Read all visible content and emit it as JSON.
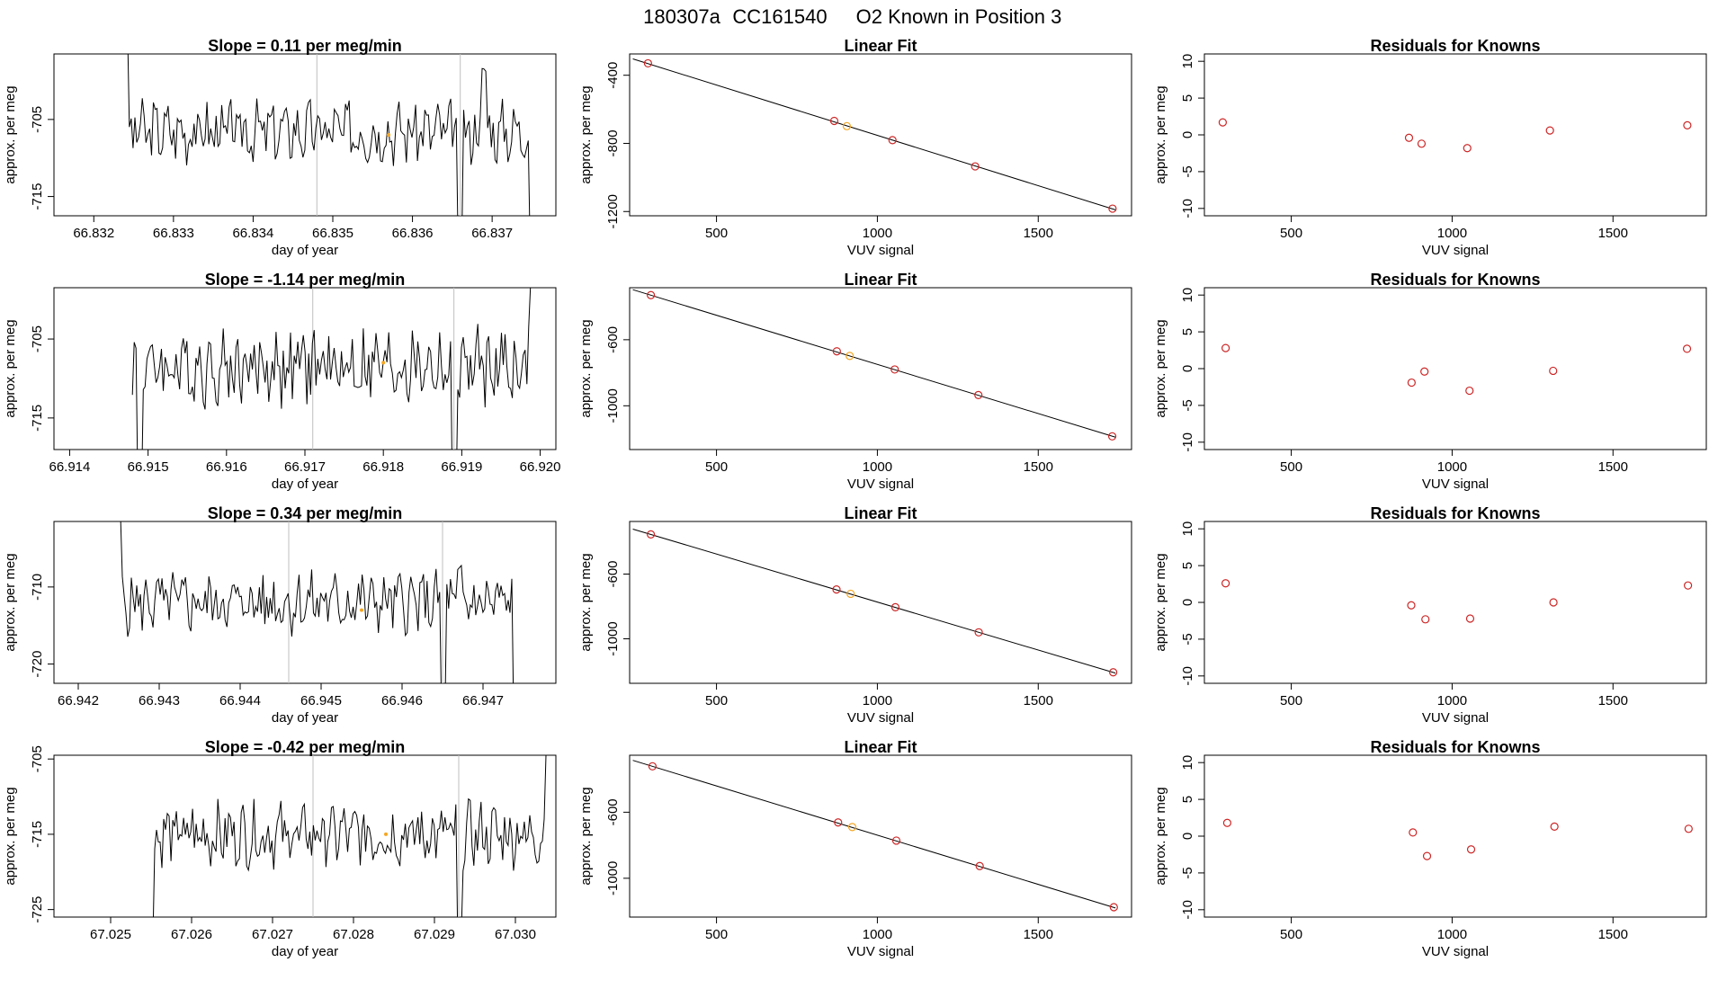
{
  "title": {
    "run_id": "180307a",
    "cylinder": "CC161540",
    "description": "O2 Known in Position  3"
  },
  "colors": {
    "line": "#000000",
    "point": "#cd2626",
    "highlight": "#f5a623",
    "vline": "#bfbfbf",
    "frame": "#000000"
  },
  "chart_data": [
    {
      "type": "line",
      "panel": "time-series",
      "row": 1,
      "title": "Slope =  0.11  per meg/min",
      "xlabel": "day of year",
      "ylabel": "approx. per meg",
      "xlim": [
        66.8315,
        66.8378
      ],
      "ylim": [
        -717.5,
        -696.5
      ],
      "xticks": [
        "66.832",
        "66.833",
        "66.834",
        "66.835",
        "66.836",
        "66.837"
      ],
      "xtick_values": [
        66.832,
        66.833,
        66.834,
        66.835,
        66.836,
        66.837
      ],
      "yticks": [
        "-705",
        "-715"
      ],
      "ytick_values": [
        -705,
        -715
      ],
      "series_start": 66.8324,
      "series_end": 66.8375,
      "series_base": -706.5,
      "series_amp": 3.3,
      "spikes": [
        {
          "x": 66.8324,
          "y": -694
        },
        {
          "x": 66.8366,
          "y": -722
        },
        {
          "x": 66.8369,
          "y": -698.5
        },
        {
          "x": 66.8375,
          "y": -722
        }
      ],
      "vlines": [
        66.8348,
        66.8366
      ],
      "highlight_point": {
        "x": 66.8357,
        "y": -707
      }
    },
    {
      "type": "line",
      "panel": "time-series",
      "row": 2,
      "title": "Slope =  -1.14  per meg/min",
      "xlabel": "day of year",
      "ylabel": "approx. per meg",
      "xlim": [
        66.9138,
        66.9202
      ],
      "ylim": [
        -719,
        -698.5
      ],
      "xticks": [
        "66.914",
        "66.915",
        "66.916",
        "66.917",
        "66.918",
        "66.919",
        "66.920"
      ],
      "xtick_values": [
        66.914,
        66.915,
        66.916,
        66.917,
        66.918,
        66.919,
        66.92
      ],
      "yticks": [
        "-705",
        "-715"
      ],
      "ytick_values": [
        -705,
        -715
      ],
      "series_start": 66.9148,
      "series_end": 66.9199,
      "series_base": -708.5,
      "series_amp": 4.0,
      "spikes": [
        {
          "x": 66.9149,
          "y": -725
        },
        {
          "x": 66.9189,
          "y": -725
        },
        {
          "x": 66.9199,
          "y": -698
        }
      ],
      "vlines": [
        66.9171,
        66.9189
      ],
      "highlight_point": {
        "x": 66.918,
        "y": -708
      }
    },
    {
      "type": "line",
      "panel": "time-series",
      "row": 3,
      "title": "Slope =  0.34  per meg/min",
      "xlabel": "day of year",
      "ylabel": "approx. per meg",
      "xlim": [
        66.9417,
        66.9479
      ],
      "ylim": [
        -722.5,
        -701.5
      ],
      "xticks": [
        "66.942",
        "66.943",
        "66.944",
        "66.945",
        "66.946",
        "66.947"
      ],
      "xtick_values": [
        66.942,
        66.943,
        66.944,
        66.945,
        66.946,
        66.947
      ],
      "yticks": [
        "-710",
        "-720"
      ],
      "ytick_values": [
        -710,
        -720
      ],
      "series_start": 66.9425,
      "series_end": 66.9474,
      "series_base": -712,
      "series_amp": 3.3,
      "spikes": [
        {
          "x": 66.9425,
          "y": -701
        },
        {
          "x": 66.9465,
          "y": -726
        },
        {
          "x": 66.9467,
          "y": -708
        },
        {
          "x": 66.9474,
          "y": -726
        }
      ],
      "vlines": [
        66.9446,
        66.9465
      ],
      "highlight_point": {
        "x": 66.9455,
        "y": -713
      }
    },
    {
      "type": "line",
      "panel": "time-series",
      "row": 4,
      "title": "Slope =  -0.42  per meg/min",
      "xlabel": "day of year",
      "ylabel": "approx. per meg",
      "xlim": [
        67.0243,
        67.0305
      ],
      "ylim": [
        -726,
        -704.5
      ],
      "xticks": [
        "67.025",
        "67.026",
        "67.027",
        "67.028",
        "67.029",
        "67.030"
      ],
      "xtick_values": [
        67.025,
        67.026,
        67.027,
        67.028,
        67.029,
        67.03
      ],
      "yticks": [
        "-705",
        "-715",
        "-725"
      ],
      "ytick_values": [
        -705,
        -715,
        -725
      ],
      "series_start": 67.0255,
      "series_end": 67.0304,
      "series_base": -715,
      "series_amp": 3.5,
      "spikes": [
        {
          "x": 67.0255,
          "y": -729
        },
        {
          "x": 67.0293,
          "y": -729
        },
        {
          "x": 67.0304,
          "y": -704
        }
      ],
      "vlines": [
        67.0275,
        67.0293
      ],
      "highlight_point": {
        "x": 67.0284,
        "y": -715
      }
    },
    {
      "type": "scatter",
      "panel": "linear-fit",
      "row": 1,
      "title": "Linear Fit",
      "xlabel": "VUV signal",
      "ylabel": "approx. per meg",
      "xlim": [
        230,
        1790
      ],
      "ylim": [
        -1225,
        -275
      ],
      "xticks": [
        "500",
        "1000",
        "1500"
      ],
      "xtick_values": [
        500,
        1000,
        1500
      ],
      "yticks": [
        "-400",
        "-800",
        "-1200"
      ],
      "ytick_values": [
        -400,
        -800,
        -1200
      ],
      "points": [
        {
          "x": 287,
          "y": -330,
          "highlight": false
        },
        {
          "x": 866,
          "y": -668,
          "highlight": false
        },
        {
          "x": 905,
          "y": -699,
          "highlight": true
        },
        {
          "x": 1047,
          "y": -781,
          "highlight": false
        },
        {
          "x": 1304,
          "y": -935,
          "highlight": false
        },
        {
          "x": 1731,
          "y": -1183,
          "highlight": false
        }
      ],
      "fit": {
        "x1": 240,
        "y1": -304,
        "x2": 1740,
        "y2": -1190
      }
    },
    {
      "type": "scatter",
      "panel": "linear-fit",
      "row": 2,
      "title": "Linear Fit",
      "xlabel": "VUV signal",
      "ylabel": "approx. per meg",
      "xlim": [
        230,
        1790
      ],
      "ylim": [
        -1265,
        -285
      ],
      "xticks": [
        "500",
        "1000",
        "1500"
      ],
      "xtick_values": [
        500,
        1000,
        1500
      ],
      "yticks": [
        "-600",
        "-1000"
      ],
      "ytick_values": [
        -600,
        -1000
      ],
      "points": [
        {
          "x": 296,
          "y": -330,
          "highlight": false
        },
        {
          "x": 874,
          "y": -670,
          "highlight": false
        },
        {
          "x": 914,
          "y": -698,
          "highlight": true
        },
        {
          "x": 1054,
          "y": -780,
          "highlight": false
        },
        {
          "x": 1314,
          "y": -935,
          "highlight": false
        },
        {
          "x": 1730,
          "y": -1185,
          "highlight": false
        }
      ],
      "fit": {
        "x1": 240,
        "y1": -297,
        "x2": 1740,
        "y2": -1190
      }
    },
    {
      "type": "scatter",
      "panel": "linear-fit",
      "row": 3,
      "title": "Linear Fit",
      "xlabel": "VUV signal",
      "ylabel": "approx. per meg",
      "xlim": [
        230,
        1790
      ],
      "ylim": [
        -1275,
        -275
      ],
      "xticks": [
        "500",
        "1000",
        "1500"
      ],
      "xtick_values": [
        500,
        1000,
        1500
      ],
      "yticks": [
        "-600",
        "-1000"
      ],
      "ytick_values": [
        -600,
        -1000
      ],
      "points": [
        {
          "x": 296,
          "y": -355,
          "highlight": false
        },
        {
          "x": 873,
          "y": -695,
          "highlight": false
        },
        {
          "x": 917,
          "y": -722,
          "highlight": true
        },
        {
          "x": 1056,
          "y": -805,
          "highlight": false
        },
        {
          "x": 1315,
          "y": -960,
          "highlight": false
        },
        {
          "x": 1733,
          "y": -1207,
          "highlight": false
        }
      ],
      "fit": {
        "x1": 240,
        "y1": -322,
        "x2": 1740,
        "y2": -1212
      }
    },
    {
      "type": "scatter",
      "panel": "linear-fit",
      "row": 4,
      "title": "Linear Fit",
      "xlabel": "VUV signal",
      "ylabel": "approx. per meg",
      "xlim": [
        230,
        1790
      ],
      "ylim": [
        -1235,
        -255
      ],
      "xticks": [
        "500",
        "1000",
        "1500"
      ],
      "xtick_values": [
        500,
        1000,
        1500
      ],
      "yticks": [
        "-600",
        "-1000"
      ],
      "ytick_values": [
        -600,
        -1000
      ],
      "points": [
        {
          "x": 301,
          "y": -322,
          "highlight": false
        },
        {
          "x": 878,
          "y": -662,
          "highlight": false
        },
        {
          "x": 922,
          "y": -690,
          "highlight": true
        },
        {
          "x": 1059,
          "y": -772,
          "highlight": false
        },
        {
          "x": 1318,
          "y": -926,
          "highlight": false
        },
        {
          "x": 1735,
          "y": -1175,
          "highlight": false
        }
      ],
      "fit": {
        "x1": 240,
        "y1": -286,
        "x2": 1740,
        "y2": -1180
      }
    },
    {
      "type": "scatter",
      "panel": "residuals",
      "row": 1,
      "title": "Residuals for Knowns",
      "xlabel": "VUV signal",
      "ylabel": "approx. per meg",
      "xlim": [
        230,
        1790
      ],
      "ylim": [
        -11,
        11
      ],
      "xticks": [
        "500",
        "1000",
        "1500"
      ],
      "xtick_values": [
        500,
        1000,
        1500
      ],
      "yticks": [
        "10",
        "5",
        "0",
        "-5",
        "-10"
      ],
      "ytick_values": [
        10,
        5,
        0,
        -5,
        -10
      ],
      "points": [
        {
          "x": 287,
          "y": 1.7
        },
        {
          "x": 866,
          "y": -0.4
        },
        {
          "x": 905,
          "y": -1.2
        },
        {
          "x": 1047,
          "y": -1.8
        },
        {
          "x": 1304,
          "y": 0.6
        },
        {
          "x": 1731,
          "y": 1.3
        }
      ]
    },
    {
      "type": "scatter",
      "panel": "residuals",
      "row": 2,
      "title": "Residuals for Knowns",
      "xlabel": "VUV signal",
      "ylabel": "approx. per meg",
      "xlim": [
        230,
        1790
      ],
      "ylim": [
        -11,
        11
      ],
      "xticks": [
        "500",
        "1000",
        "1500"
      ],
      "xtick_values": [
        500,
        1000,
        1500
      ],
      "yticks": [
        "10",
        "5",
        "0",
        "-5",
        "-10"
      ],
      "ytick_values": [
        10,
        5,
        0,
        -5,
        -10
      ],
      "points": [
        {
          "x": 296,
          "y": 2.8
        },
        {
          "x": 874,
          "y": -1.9
        },
        {
          "x": 914,
          "y": -0.4
        },
        {
          "x": 1054,
          "y": -3.0
        },
        {
          "x": 1314,
          "y": -0.3
        },
        {
          "x": 1730,
          "y": 2.7
        }
      ]
    },
    {
      "type": "scatter",
      "panel": "residuals",
      "row": 3,
      "title": "Residuals for Knowns",
      "xlabel": "VUV signal",
      "ylabel": "approx. per meg",
      "xlim": [
        230,
        1790
      ],
      "ylim": [
        -11,
        11
      ],
      "xticks": [
        "500",
        "1000",
        "1500"
      ],
      "xtick_values": [
        500,
        1000,
        1500
      ],
      "yticks": [
        "10",
        "5",
        "0",
        "-5",
        "-10"
      ],
      "ytick_values": [
        10,
        5,
        0,
        -5,
        -10
      ],
      "points": [
        {
          "x": 296,
          "y": 2.6
        },
        {
          "x": 873,
          "y": -0.4
        },
        {
          "x": 917,
          "y": -2.3
        },
        {
          "x": 1056,
          "y": -2.2
        },
        {
          "x": 1315,
          "y": 0.0
        },
        {
          "x": 1733,
          "y": 2.3
        }
      ]
    },
    {
      "type": "scatter",
      "panel": "residuals",
      "row": 4,
      "title": "Residuals for Knowns",
      "xlabel": "VUV signal",
      "ylabel": "approx. per meg",
      "xlim": [
        230,
        1790
      ],
      "ylim": [
        -11,
        11
      ],
      "xticks": [
        "500",
        "1000",
        "1500"
      ],
      "xtick_values": [
        500,
        1000,
        1500
      ],
      "yticks": [
        "10",
        "5",
        "0",
        "-5",
        "-10"
      ],
      "ytick_values": [
        10,
        5,
        0,
        -5,
        -10
      ],
      "points": [
        {
          "x": 301,
          "y": 1.8
        },
        {
          "x": 878,
          "y": 0.5
        },
        {
          "x": 922,
          "y": -2.7
        },
        {
          "x": 1059,
          "y": -1.8
        },
        {
          "x": 1318,
          "y": 1.3
        },
        {
          "x": 1735,
          "y": 1.0
        }
      ]
    }
  ]
}
